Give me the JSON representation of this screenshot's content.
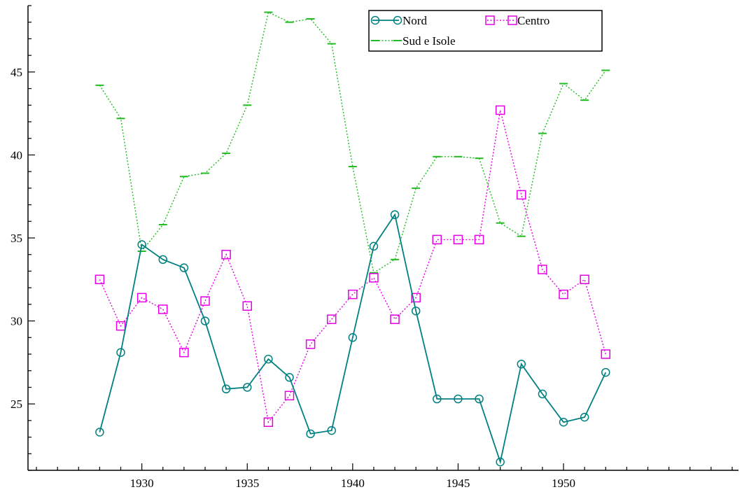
{
  "chart_data": {
    "type": "line",
    "title": "",
    "xlabel": "",
    "ylabel": "",
    "x": [
      1928,
      1929,
      1930,
      1931,
      1932,
      1933,
      1934,
      1935,
      1936,
      1937,
      1938,
      1939,
      1940,
      1941,
      1942,
      1943,
      1944,
      1945,
      1946,
      1947,
      1948,
      1949,
      1950,
      1951,
      1952
    ],
    "xlim": [
      1924.6,
      1958.3
    ],
    "ylim": [
      21.0,
      49.0
    ],
    "xticks": [
      1930,
      1935,
      1940,
      1945,
      1950
    ],
    "xtick_labels": [
      "1930",
      "1935",
      "1940",
      "1945",
      "1950"
    ],
    "yticks": [
      25,
      30,
      35,
      40,
      45
    ],
    "ytick_labels": [
      "25",
      "30",
      "35",
      "40",
      "45"
    ],
    "grid": false,
    "legend_position": "top-right",
    "series": [
      {
        "name": "Nord",
        "color": "#008080",
        "marker": "circle",
        "line_style": "solid",
        "values": [
          23.3,
          28.1,
          34.6,
          33.7,
          33.2,
          30.0,
          25.9,
          26.0,
          27.7,
          26.6,
          23.2,
          23.4,
          29.0,
          34.5,
          36.4,
          30.6,
          25.3,
          25.3,
          25.3,
          21.5,
          27.4,
          25.6,
          23.9,
          24.2,
          26.9
        ]
      },
      {
        "name": "Centro",
        "color": "#e600e6",
        "marker": "square",
        "line_style": "dotted",
        "values": [
          32.5,
          29.7,
          31.4,
          30.7,
          28.1,
          31.2,
          34.0,
          30.9,
          23.9,
          25.5,
          28.6,
          30.1,
          31.6,
          32.6,
          30.1,
          31.4,
          34.9,
          34.9,
          34.9,
          42.7,
          37.6,
          33.1,
          31.6,
          32.5,
          28.0
        ]
      },
      {
        "name": "Sud e Isole",
        "color": "#22bb22",
        "marker": "dash",
        "line_style": "dotted",
        "values": [
          44.2,
          42.2,
          34.2,
          35.8,
          38.7,
          38.9,
          40.1,
          43.0,
          48.6,
          48.0,
          48.2,
          46.7,
          39.3,
          32.9,
          33.7,
          38.0,
          39.9,
          39.9,
          39.8,
          35.9,
          35.1,
          41.3,
          44.3,
          43.3,
          45.1
        ]
      }
    ]
  }
}
